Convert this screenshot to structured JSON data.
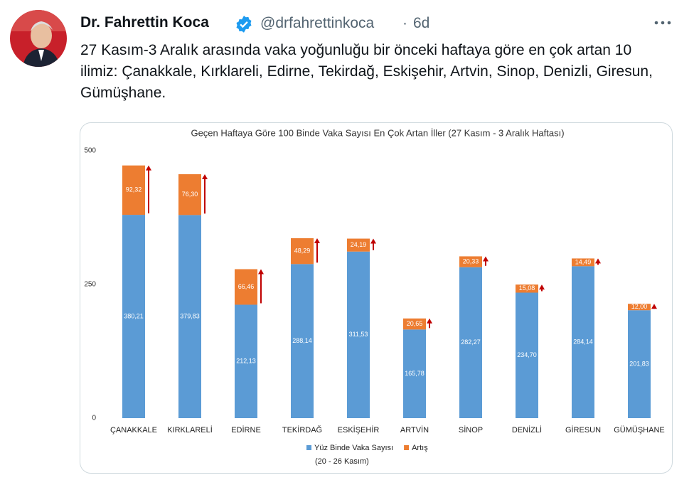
{
  "tweet": {
    "author": {
      "name": "Dr. Fahrettin Koca",
      "handle": "@drfahrettinkoca"
    },
    "separator": "·",
    "time": "6d",
    "text": "27 Kasım-3 Aralık arasında vaka yoğunluğu bir önceki haftaya göre en çok artan 10 ilimiz: Çanakkale, Kırklareli, Edirne, Tekirdağ, Eskişehir, Artvin, Sinop, Denizli, Giresun, Gümüşhane."
  },
  "chart_data": {
    "type": "stacked_bar",
    "title": "Geçen Haftaya Göre 100 Binde Vaka Sayısı En Çok Artan İller (27 Kasım - 3 Aralık Haftası)",
    "categories": [
      "ÇANAKKALE",
      "KIRKLARELİ",
      "EDİRNE",
      "TEKİRDAĞ",
      "ESKİŞEHİR",
      "ARTVİN",
      "SİNOP",
      "DENİZLİ",
      "GİRESUN",
      "GÜMÜŞHANE"
    ],
    "series": [
      {
        "name": "Yüz Binde Vaka Sayısı",
        "color": "#5b9bd5",
        "values": [
          380.21,
          379.83,
          212.13,
          288.14,
          311.53,
          165.78,
          282.27,
          234.7,
          284.14,
          201.83
        ],
        "value_labels": [
          "380,21",
          "379,83",
          "212,13",
          "288,14",
          "311,53",
          "165,78",
          "282,27",
          "234,70",
          "284,14",
          "201,83"
        ]
      },
      {
        "name": "Artış",
        "color": "#ed7d31",
        "values": [
          92.32,
          76.3,
          66.46,
          48.29,
          24.19,
          20.65,
          20.33,
          15.08,
          14.49,
          12.0
        ],
        "value_labels": [
          "92,32",
          "76,30",
          "66,46",
          "48,29",
          "24,19",
          "20,65",
          "20,33",
          "15,08",
          "14,49",
          "12,00"
        ]
      }
    ],
    "legend_subtitle": "(20 - 26 Kasım)",
    "ylim": [
      0,
      500
    ],
    "yticks": [
      0,
      250,
      500
    ],
    "grid": false,
    "arrow_color": "#c00000"
  }
}
